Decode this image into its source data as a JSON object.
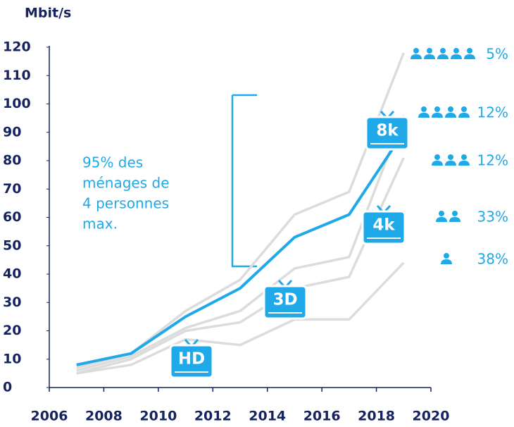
{
  "chart_data": {
    "type": "line",
    "y_label": "Mbit/s",
    "x": [
      2007,
      2009,
      2011,
      2013,
      2015,
      2017,
      2019
    ],
    "series": [
      {
        "color": "#dcdcdc",
        "values": [
          7,
          12,
          27,
          38,
          61,
          69,
          118
        ]
      },
      {
        "color": "#dcdcdc",
        "values": [
          6,
          11,
          21,
          27,
          42,
          46,
          96
        ]
      },
      {
        "color": "#dcdcdc",
        "values": [
          5,
          10,
          20,
          23,
          35,
          39,
          81
        ]
      },
      {
        "color": "#dcdcdc",
        "values": [
          5,
          8,
          17,
          15,
          24,
          24,
          44
        ]
      },
      {
        "color": "#1fa9e9",
        "values": [
          8,
          12,
          25,
          35,
          53,
          61,
          90
        ]
      }
    ],
    "xlim": [
      2006,
      2020
    ],
    "xticks": [
      2006,
      2008,
      2010,
      2012,
      2014,
      2016,
      2018,
      2020
    ],
    "ylim": [
      0,
      120
    ],
    "yticks": [
      0,
      10,
      20,
      30,
      40,
      50,
      60,
      70,
      80,
      90,
      100,
      110,
      120
    ],
    "tv_labels": [
      "HD",
      "3D",
      "4k",
      "8k"
    ],
    "note": [
      "95% des",
      "ménages de",
      "4 personnes",
      "max."
    ],
    "households": [
      {
        "label": "5%",
        "people": 5
      },
      {
        "label": "12%",
        "people": 4
      },
      {
        "label": "12%",
        "people": 3
      },
      {
        "label": "33%",
        "people": 2
      },
      {
        "label": "38%",
        "people": 1
      }
    ]
  }
}
